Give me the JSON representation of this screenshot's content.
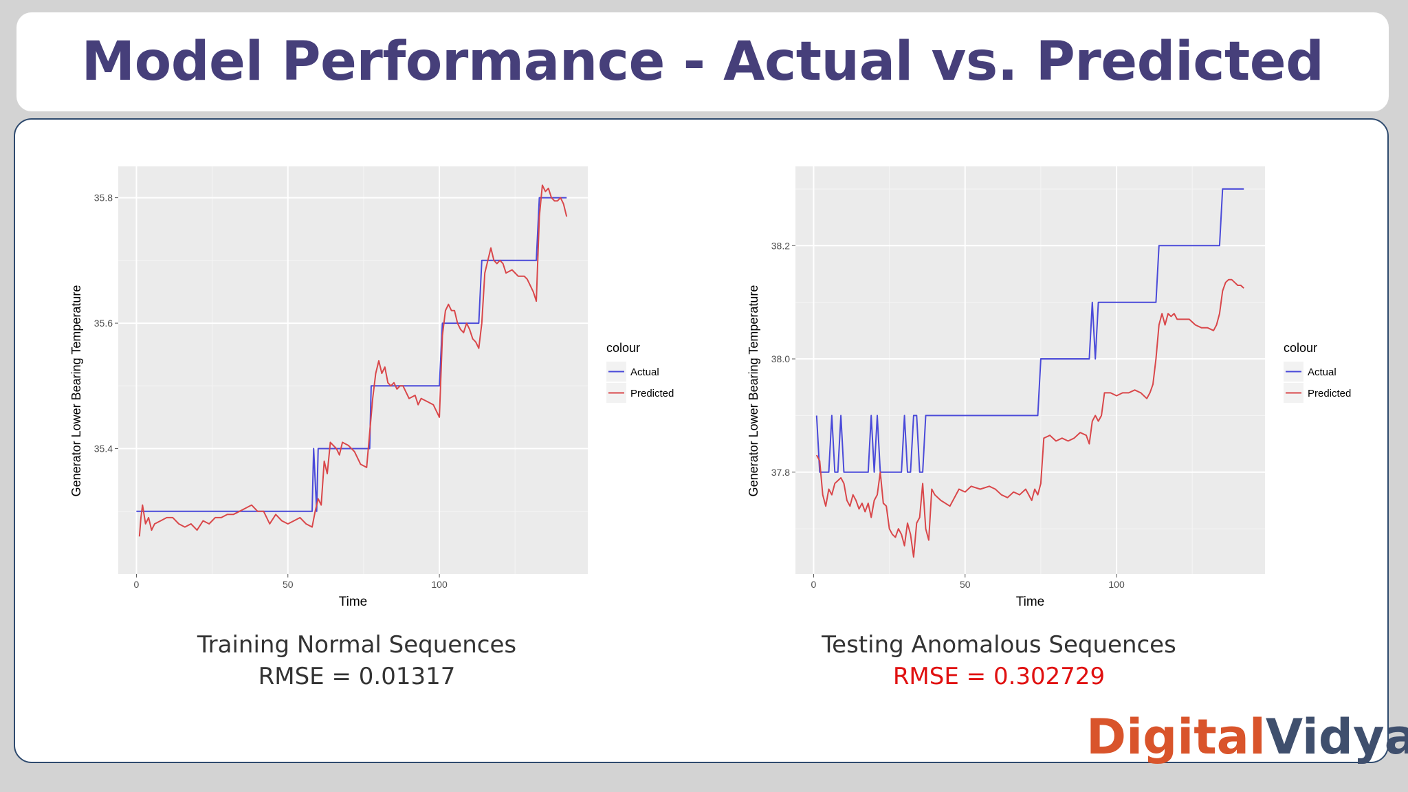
{
  "title": "Model Performance - Actual vs. Predicted",
  "colors": {
    "actual": "#4a4ad9",
    "predicted": "#d9474a",
    "title": "#463f7a",
    "rmse_highlight": "#e01010"
  },
  "captions": [
    {
      "name": "Training Normal Sequences",
      "rmse": "RMSE = 0.01317"
    },
    {
      "name": "Testing Anomalous Sequences",
      "rmse": "RMSE = 0.302729"
    }
  ],
  "logo": {
    "part1": "Digital",
    "part2": "Vidya"
  },
  "chart_data": [
    {
      "type": "line",
      "xlabel": "Time",
      "ylabel": "Generator Lower Bearing Temperature",
      "xlim": [
        -6,
        149
      ],
      "ylim": [
        35.2,
        35.85
      ],
      "xticks": [
        0,
        50,
        100
      ],
      "yticks": [
        35.4,
        35.6,
        35.8
      ],
      "ytick_labels": [
        "35.4",
        "35.6",
        "35.8"
      ],
      "legend": {
        "title": "colour",
        "position": "right"
      },
      "grid": true,
      "series": [
        {
          "name": "Actual",
          "color": "#4a4ad9",
          "x": [
            0,
            58,
            58.5,
            59.5,
            60,
            61,
            77,
            77.5,
            100,
            101,
            113,
            114,
            132,
            133,
            142
          ],
          "y": [
            35.3,
            35.3,
            35.4,
            35.3,
            35.4,
            35.4,
            35.4,
            35.5,
            35.5,
            35.6,
            35.6,
            35.7,
            35.7,
            35.8,
            35.8
          ]
        },
        {
          "name": "Predicted",
          "color": "#d9474a",
          "x": [
            1,
            1.5,
            2,
            3,
            4,
            5,
            6,
            8,
            10,
            12,
            14,
            16,
            18,
            20,
            22,
            24,
            26,
            28,
            30,
            32,
            34,
            36,
            38,
            40,
            42,
            44,
            46,
            48,
            50,
            52,
            54,
            56,
            58,
            59,
            60,
            61,
            62,
            63,
            64,
            65,
            66,
            67,
            68,
            70,
            72,
            74,
            76,
            78,
            79,
            80,
            81,
            82,
            83,
            84,
            85,
            86,
            87,
            88,
            90,
            92,
            93,
            94,
            96,
            98,
            99,
            100,
            101,
            102,
            103,
            104,
            105,
            106,
            107,
            108,
            109,
            110,
            111,
            112,
            113,
            114,
            115,
            116,
            117,
            118,
            119,
            120,
            121,
            122,
            124,
            126,
            128,
            129,
            130,
            131,
            132,
            133,
            134,
            135,
            136,
            137,
            138,
            139,
            140,
            141,
            142
          ],
          "y": [
            35.26,
            35.29,
            35.31,
            35.28,
            35.29,
            35.27,
            35.28,
            35.285,
            35.29,
            35.29,
            35.28,
            35.275,
            35.28,
            35.27,
            35.285,
            35.28,
            35.29,
            35.29,
            35.295,
            35.295,
            35.3,
            35.305,
            35.31,
            35.3,
            35.3,
            35.28,
            35.295,
            35.285,
            35.28,
            35.285,
            35.29,
            35.28,
            35.275,
            35.3,
            35.32,
            35.31,
            35.38,
            35.36,
            35.41,
            35.405,
            35.4,
            35.39,
            35.41,
            35.405,
            35.395,
            35.375,
            35.37,
            35.48,
            35.52,
            35.54,
            35.52,
            35.53,
            35.505,
            35.5,
            35.505,
            35.495,
            35.5,
            35.5,
            35.48,
            35.485,
            35.47,
            35.48,
            35.475,
            35.47,
            35.46,
            35.45,
            35.58,
            35.62,
            35.63,
            35.62,
            35.62,
            35.6,
            35.59,
            35.585,
            35.6,
            35.59,
            35.575,
            35.57,
            35.56,
            35.6,
            35.68,
            35.7,
            35.72,
            35.7,
            35.695,
            35.7,
            35.695,
            35.68,
            35.685,
            35.675,
            35.675,
            35.67,
            35.66,
            35.65,
            35.635,
            35.77,
            35.82,
            35.81,
            35.815,
            35.8,
            35.795,
            35.795,
            35.8,
            35.79,
            35.77
          ]
        }
      ]
    },
    {
      "type": "line",
      "xlabel": "Time",
      "ylabel": "Generator Lower Bearing Temperature",
      "xlim": [
        -6,
        149
      ],
      "ylim": [
        37.62,
        38.34
      ],
      "xticks": [
        0,
        50,
        100
      ],
      "yticks": [
        37.8,
        38.0,
        38.2
      ],
      "ytick_labels": [
        "37.8",
        "38.0",
        "38.2"
      ],
      "legend": {
        "title": "colour",
        "position": "right"
      },
      "grid": true,
      "series": [
        {
          "name": "Actual",
          "color": "#4a4ad9",
          "x": [
            1,
            2,
            5,
            6,
            7,
            8,
            9,
            10,
            18,
            19,
            20,
            21,
            22,
            29,
            30,
            31,
            32,
            33,
            34,
            35,
            36,
            37,
            74,
            75,
            91,
            92,
            93,
            94,
            113,
            114,
            134,
            135,
            142
          ],
          "y": [
            37.9,
            37.8,
            37.8,
            37.9,
            37.8,
            37.8,
            37.9,
            37.8,
            37.8,
            37.9,
            37.8,
            37.9,
            37.8,
            37.8,
            37.9,
            37.8,
            37.8,
            37.9,
            37.9,
            37.8,
            37.8,
            37.9,
            37.9,
            38.0,
            38.0,
            38.1,
            38.0,
            38.1,
            38.1,
            38.2,
            38.2,
            38.3,
            38.3
          ]
        },
        {
          "name": "Predicted",
          "color": "#d9474a",
          "x": [
            1,
            2,
            3,
            4,
            5,
            6,
            7,
            8,
            9,
            10,
            11,
            12,
            13,
            14,
            15,
            16,
            17,
            18,
            19,
            20,
            21,
            22,
            23,
            24,
            25,
            26,
            27,
            28,
            29,
            30,
            31,
            32,
            33,
            34,
            35,
            36,
            37,
            38,
            39,
            40,
            42,
            45,
            48,
            50,
            52,
            55,
            58,
            60,
            62,
            64,
            66,
            68,
            70,
            72,
            73,
            74,
            75,
            76,
            78,
            80,
            82,
            84,
            86,
            88,
            90,
            91,
            92,
            93,
            94,
            95,
            96,
            98,
            100,
            102,
            104,
            106,
            108,
            110,
            111,
            112,
            113,
            114,
            115,
            116,
            117,
            118,
            119,
            120,
            122,
            124,
            126,
            128,
            130,
            132,
            133,
            134,
            135,
            136,
            137,
            138,
            139,
            140,
            141,
            142
          ],
          "y": [
            37.83,
            37.82,
            37.76,
            37.74,
            37.77,
            37.76,
            37.78,
            37.785,
            37.79,
            37.78,
            37.75,
            37.74,
            37.76,
            37.75,
            37.735,
            37.745,
            37.73,
            37.745,
            37.72,
            37.75,
            37.76,
            37.8,
            37.745,
            37.74,
            37.7,
            37.69,
            37.685,
            37.7,
            37.69,
            37.67,
            37.71,
            37.69,
            37.65,
            37.71,
            37.72,
            37.78,
            37.7,
            37.68,
            37.77,
            37.76,
            37.75,
            37.74,
            37.77,
            37.765,
            37.775,
            37.77,
            37.775,
            37.77,
            37.76,
            37.755,
            37.765,
            37.76,
            37.77,
            37.75,
            37.77,
            37.76,
            37.78,
            37.86,
            37.865,
            37.855,
            37.86,
            37.855,
            37.86,
            37.87,
            37.865,
            37.85,
            37.89,
            37.9,
            37.89,
            37.9,
            37.94,
            37.94,
            37.935,
            37.94,
            37.94,
            37.945,
            37.94,
            37.93,
            37.94,
            37.955,
            38.0,
            38.06,
            38.08,
            38.06,
            38.08,
            38.075,
            38.08,
            38.07,
            38.07,
            38.07,
            38.06,
            38.055,
            38.055,
            38.05,
            38.06,
            38.08,
            38.12,
            38.135,
            38.14,
            38.14,
            38.135,
            38.13,
            38.13,
            38.125
          ]
        }
      ]
    }
  ]
}
